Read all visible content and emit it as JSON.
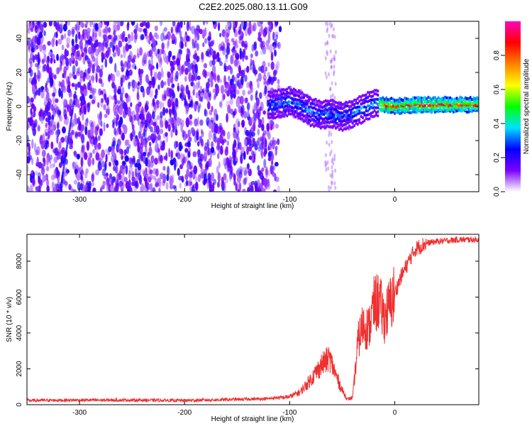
{
  "title": "C2E2.2025.080.13.11.G09",
  "chart_data": [
    {
      "type": "heatmap",
      "xlabel": "Height of straight line (km)",
      "ylabel": "Frequency (Hz)",
      "xlim": [
        -350,
        80
      ],
      "ylim": [
        -50,
        50
      ],
      "xticks": [
        -300,
        -200,
        -100,
        0
      ],
      "yticks": [
        -40,
        -20,
        0,
        20,
        40
      ],
      "colorbar_label": "Normalized spectral amplitude",
      "colorbar_ticks": [
        "0.0",
        "0.2",
        "0.4",
        "0.6",
        "0.8"
      ],
      "colorbar_range": [
        0,
        1
      ],
      "colormap": [
        "#ffffff",
        "#7a00ff",
        "#0000ff",
        "#00e0ff",
        "#00ff00",
        "#ffff00",
        "#ff8000",
        "#ff0000",
        "#ff00c0"
      ],
      "tone_track": {
        "x": [
          -115,
          -100,
          -90,
          -80,
          -70,
          -60,
          -50,
          -40,
          -30,
          -20,
          -10,
          0,
          20,
          40,
          60,
          80
        ],
        "y": [
          1,
          3,
          1,
          -3,
          -5,
          -4,
          -6,
          -4,
          -1,
          2,
          1,
          0,
          1,
          1,
          1,
          1
        ]
      }
    },
    {
      "type": "line",
      "xlabel": "Height of straight line (km)",
      "ylabel": "SNR (10 * v/v)",
      "xlim": [
        -350,
        80
      ],
      "ylim": [
        0,
        9500
      ],
      "xticks": [
        -300,
        -200,
        -100,
        0
      ],
      "yticks": [
        0,
        2000,
        4000,
        6000,
        8000
      ],
      "color": "#ee3030",
      "x": [
        -350,
        -300,
        -250,
        -200,
        -150,
        -120,
        -100,
        -90,
        -80,
        -70,
        -62,
        -55,
        -50,
        -45,
        -40,
        -35,
        -30,
        -25,
        -20,
        -15,
        -10,
        -5,
        0,
        5,
        10,
        15,
        20,
        30,
        40,
        50,
        60,
        70,
        80
      ],
      "y": [
        200,
        220,
        220,
        200,
        260,
        300,
        450,
        700,
        1400,
        2200,
        2600,
        1500,
        800,
        300,
        400,
        3500,
        4500,
        4200,
        5500,
        5800,
        4800,
        5500,
        6200,
        7000,
        7600,
        8200,
        8700,
        9000,
        9100,
        9150,
        9200,
        9200,
        9200
      ]
    }
  ]
}
